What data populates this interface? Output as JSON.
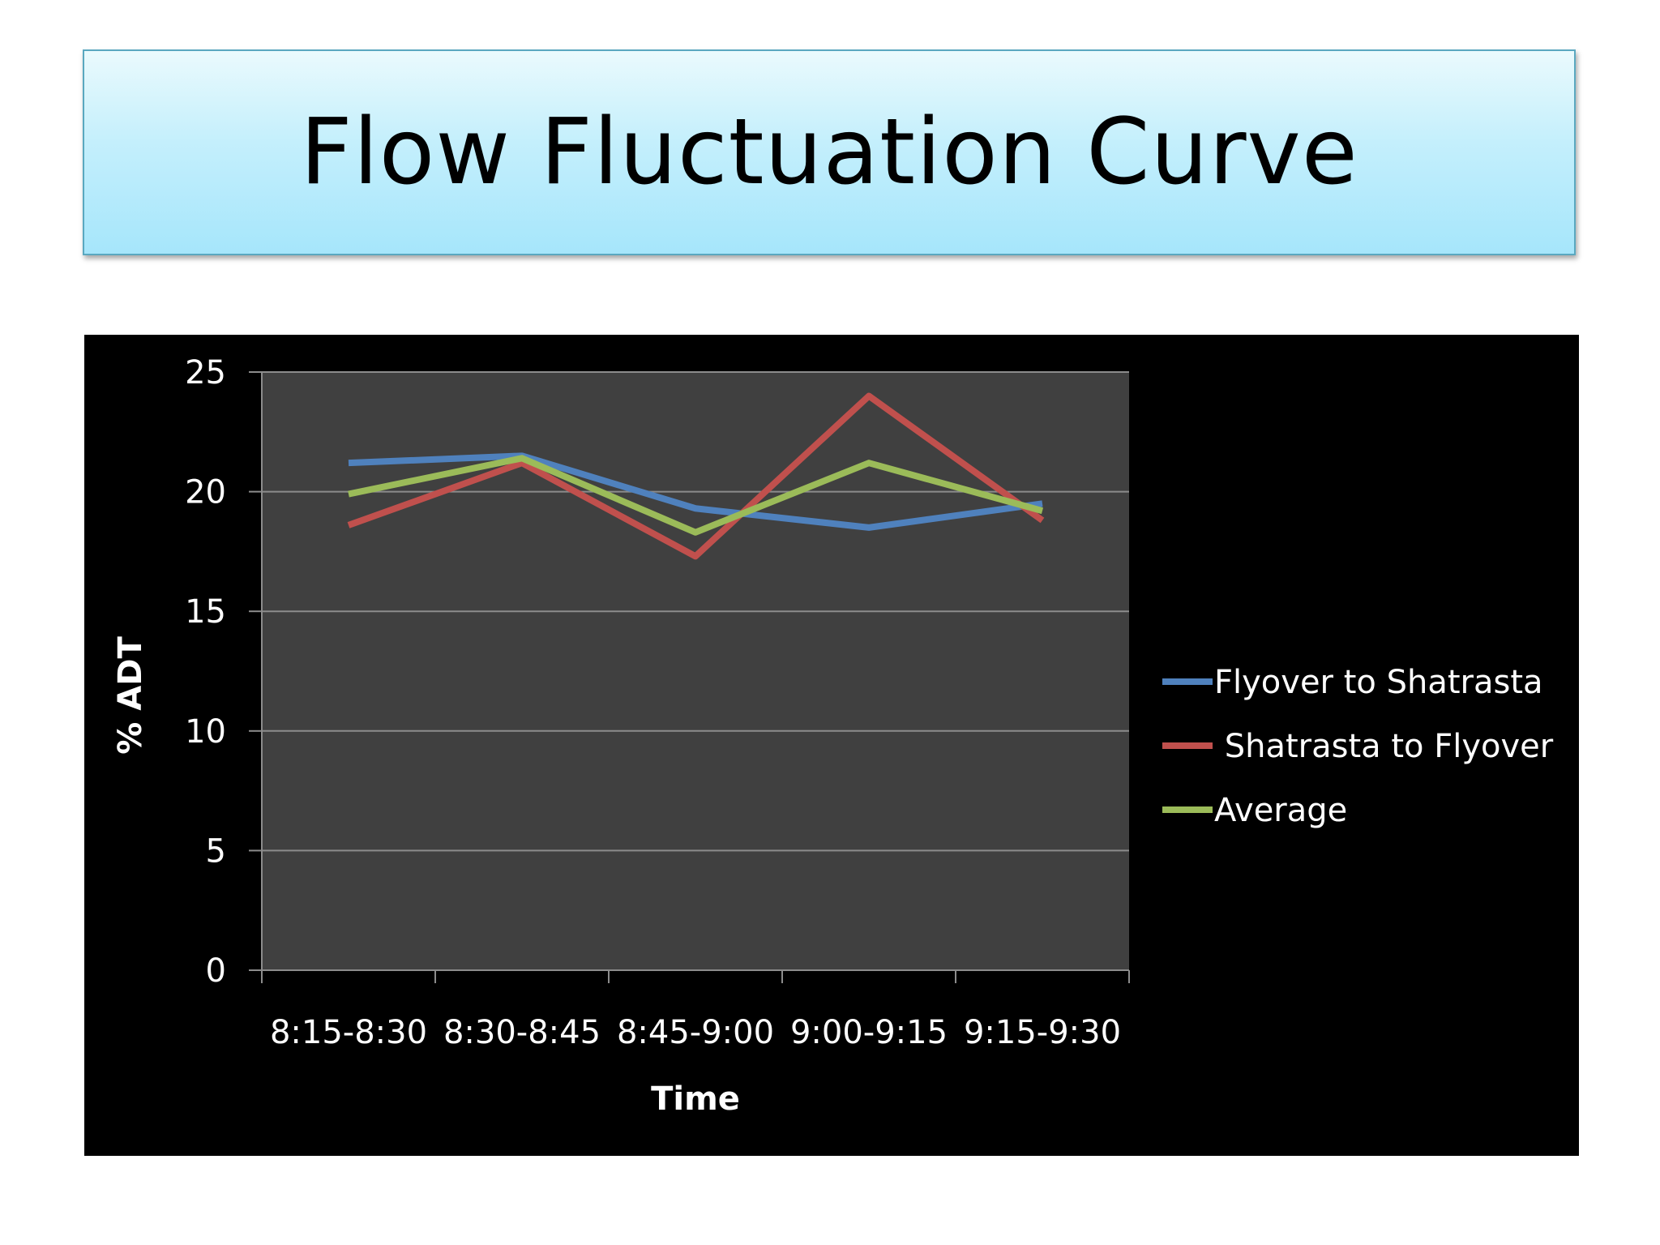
{
  "slide": {
    "title": "Flow Fluctuation Curve"
  },
  "chart_data": {
    "type": "line",
    "categories": [
      "8:15-8:30",
      "8:30-8:45",
      "8:45-9:00",
      "9:00-9:15",
      "9:15-9:30"
    ],
    "xlabel": "Time",
    "ylabel": "% ADT",
    "ylim": [
      0,
      25
    ],
    "yticks": [
      0,
      5,
      10,
      15,
      20,
      25
    ],
    "grid": true,
    "legend_position": "right",
    "plot_background": "#404040",
    "series": [
      {
        "name": "Flyover to Shatrasta",
        "color": "#4f81bd",
        "values": [
          21.2,
          21.5,
          19.3,
          18.5,
          19.5
        ]
      },
      {
        "name": " Shatrasta to Flyover",
        "color": "#c0504d",
        "values": [
          18.6,
          21.2,
          17.3,
          24.0,
          18.8
        ]
      },
      {
        "name": "Average",
        "color": "#9bbb59",
        "values": [
          19.9,
          21.4,
          18.3,
          21.2,
          19.2
        ]
      }
    ]
  }
}
